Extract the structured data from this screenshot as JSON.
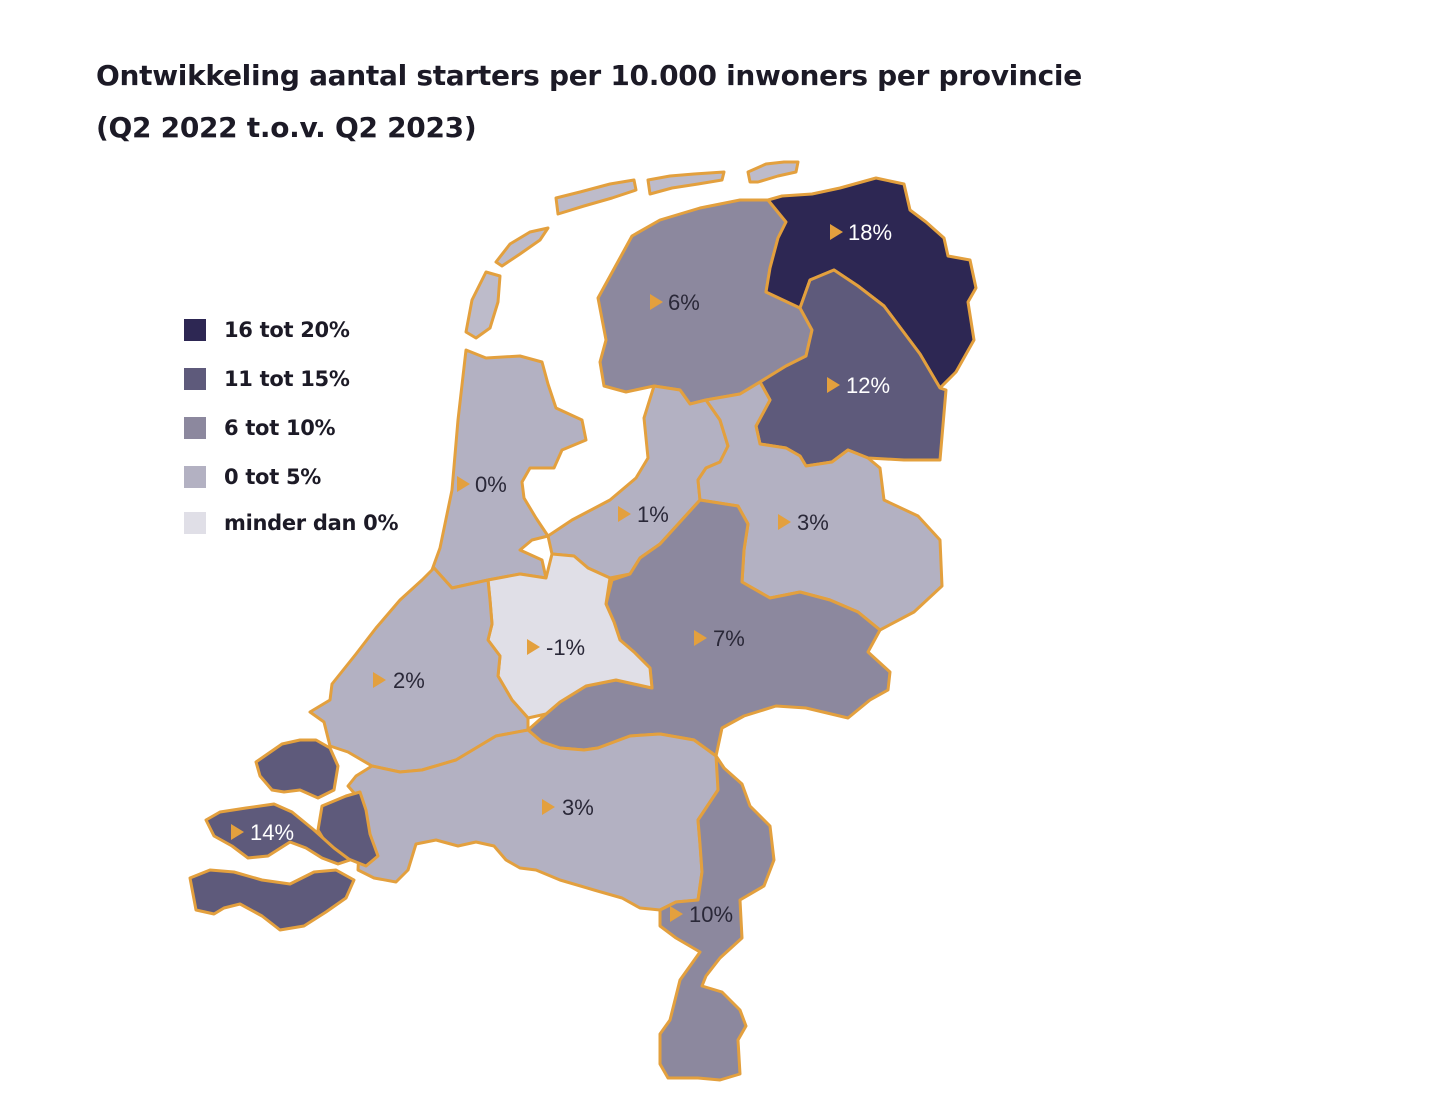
{
  "title": {
    "line1": "Ontwikkeling aantal starters per 10.000 inwoners per provincie",
    "line2": "(Q2 2022 t.o.v. Q2 2023)"
  },
  "colors": {
    "outline": "#e3a03e",
    "arrow": "#e3a03e",
    "band_16_20": "#2d2753",
    "band_11_15": "#5e5a7b",
    "band_6_10": "#8c889e",
    "band_0_5": "#b3b1c2",
    "band_below_0": "#e0dfe7",
    "islands": "#bdbbca"
  },
  "legend": [
    {
      "label": "16 tot 20%",
      "color": "#2d2753"
    },
    {
      "label": "11 tot 15%",
      "color": "#5e5a7b"
    },
    {
      "label": "6 tot 10%",
      "color": "#8c889e"
    },
    {
      "label": "0 tot 5%",
      "color": "#b3b1c2"
    },
    {
      "label": "minder dan 0%",
      "color": "#e0dfe7"
    }
  ],
  "chart_data": {
    "type": "choropleth",
    "unit": "%",
    "regions": [
      {
        "id": "groningen",
        "value": 18,
        "label": "18%"
      },
      {
        "id": "friesland",
        "value": 6,
        "label": "6%"
      },
      {
        "id": "drenthe",
        "value": 12,
        "label": "12%"
      },
      {
        "id": "noord-holland",
        "value": 0,
        "label": "0%"
      },
      {
        "id": "flevoland",
        "value": 1,
        "label": "1%"
      },
      {
        "id": "overijssel",
        "value": 3,
        "label": "3%"
      },
      {
        "id": "utrecht",
        "value": -1,
        "label": "-1%"
      },
      {
        "id": "gelderland",
        "value": 7,
        "label": "7%"
      },
      {
        "id": "zuid-holland",
        "value": 2,
        "label": "2%"
      },
      {
        "id": "zeeland",
        "value": 14,
        "label": "14%"
      },
      {
        "id": "noord-brabant",
        "value": 3,
        "label": "3%"
      },
      {
        "id": "limburg",
        "value": 10,
        "label": "10%"
      }
    ]
  }
}
